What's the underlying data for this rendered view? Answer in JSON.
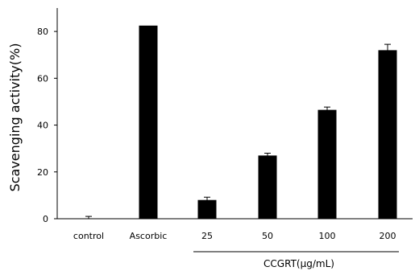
{
  "chart_data": {
    "type": "bar",
    "categories": [
      "control",
      "Ascorbic",
      "25",
      "50",
      "100",
      "200"
    ],
    "values": [
      0,
      82.5,
      8,
      27,
      46.5,
      72
    ],
    "errors": [
      1,
      0.2,
      1.2,
      1,
      1.2,
      2.5
    ],
    "ylabel": "Scavenging activity(%)",
    "group_label": "CCGRT(μg/mL)",
    "ylim": [
      0,
      90
    ],
    "yticks": [
      0,
      20,
      40,
      60,
      80
    ],
    "bar_color": "#000000",
    "grid": false
  }
}
